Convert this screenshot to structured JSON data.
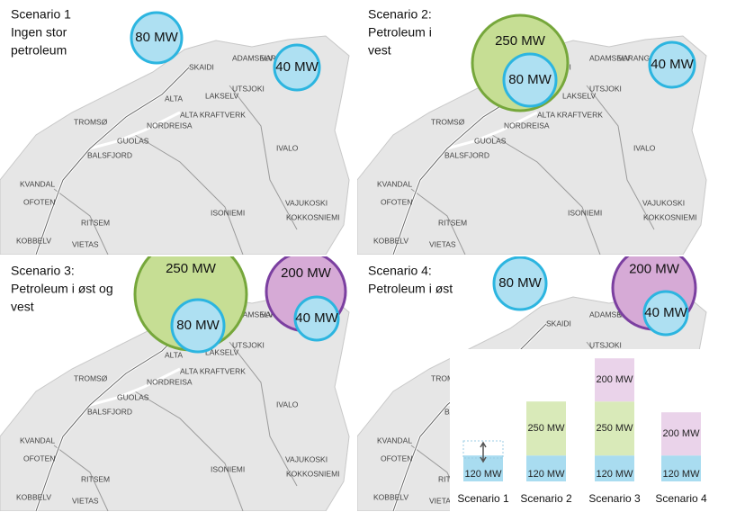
{
  "map_labels": [
    "SKAIDI",
    "ADAMSELV",
    "VARANGER",
    "ALTA",
    "LAKSELV",
    "UTSJOKI",
    "ALTA KRAFTVERK",
    "TROMSØ",
    "NORDREISA",
    "GUOLAS",
    "BALSFJORD",
    "IVALO",
    "KVANDAL",
    "OFOTEN",
    "VAJUKOSKI",
    "ISONIEMI",
    "KOKKOSNIEMI",
    "RITSEM",
    "KOBBELV",
    "VIETAS"
  ],
  "panels": [
    {
      "title": [
        "Scenario 1",
        "Ingen stor",
        "petroleum"
      ],
      "bubbles": [
        {
          "label": "80 MW",
          "color": "#aee0f2",
          "stroke": "#2cb5e0"
        },
        {
          "label": "40 MW",
          "color": "#aee0f2",
          "stroke": "#2cb5e0"
        }
      ]
    },
    {
      "title": [
        "Scenario 2:",
        "Petroleum i",
        "vest"
      ],
      "bubbles": [
        {
          "label": "250 MW",
          "color": "#c6de94",
          "stroke": "#76a73b"
        },
        {
          "label": "80 MW",
          "color": "#aee0f2",
          "stroke": "#2cb5e0"
        },
        {
          "label": "40 MW",
          "color": "#aee0f2",
          "stroke": "#2cb5e0"
        }
      ]
    },
    {
      "title": [
        "Scenario 3:",
        "Petroleum i øst og",
        "vest"
      ],
      "bubbles": [
        {
          "label": "250 MW",
          "color": "#c6de94",
          "stroke": "#76a73b"
        },
        {
          "label": "80 MW",
          "color": "#aee0f2",
          "stroke": "#2cb5e0"
        },
        {
          "label": "200 MW",
          "color": "#d6aad6",
          "stroke": "#7b3fa0"
        },
        {
          "label": "40 MW",
          "color": "#aee0f2",
          "stroke": "#2cb5e0"
        }
      ]
    },
    {
      "title": [
        "Scenario 4:",
        "Petroleum i øst"
      ],
      "bubbles": [
        {
          "label": "80 MW",
          "color": "#aee0f2",
          "stroke": "#2cb5e0"
        },
        {
          "label": "200 MW",
          "color": "#d6aad6",
          "stroke": "#7b3fa0"
        },
        {
          "label": "40 MW",
          "color": "#aee0f2",
          "stroke": "#2cb5e0"
        }
      ]
    }
  ],
  "chart_data": {
    "type": "bar",
    "stacked": true,
    "categories": [
      "Scenario 1",
      "Scenario 2",
      "Scenario 3",
      "Scenario 4"
    ],
    "series": [
      {
        "color": "#a9dcf0",
        "values": [
          120,
          120,
          120,
          120
        ],
        "value_labels": [
          "120 MW",
          "120 MW",
          "120 MW",
          "120 MW"
        ]
      },
      {
        "color": "#d9eab9",
        "values": [
          null,
          250,
          250,
          null
        ],
        "value_labels": [
          null,
          "250 MW",
          "250 MW",
          null
        ]
      },
      {
        "color": "#ead3ea",
        "values": [
          null,
          null,
          200,
          200
        ],
        "value_labels": [
          null,
          null,
          "200 MW",
          "200 MW"
        ]
      }
    ]
  }
}
